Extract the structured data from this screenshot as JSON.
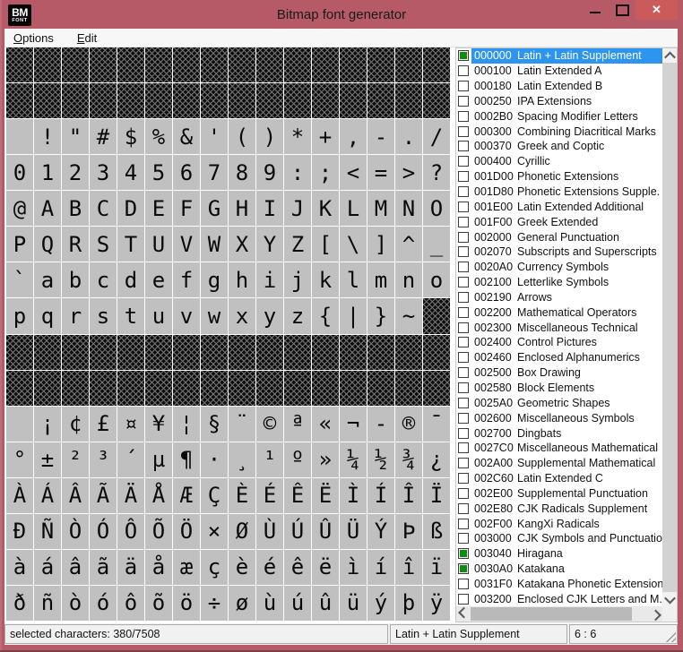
{
  "titlebar": {
    "title": "Bitmap font generator",
    "logo_top": "BM",
    "logo_bottom": "FONT",
    "close_glyph": "✕"
  },
  "menu": {
    "options_label": "Options",
    "edit_label": "Edit"
  },
  "char_grid": {
    "hatch_marker": "▒",
    "rows": [
      "▒▒▒▒▒▒▒▒▒▒▒▒▒▒▒▒",
      "▒▒▒▒▒▒▒▒▒▒▒▒▒▒▒▒",
      " !\"#$%&'()*+,-./",
      "0123456789:;<=>?",
      "@ABCDEFGHIJKLMNO",
      "PQRSTUVWXYZ[\\]^_",
      "`abcdefghijklmno",
      "pqrstuvwxyz{|}~▒",
      "▒▒▒▒▒▒▒▒▒▒▒▒▒▒▒▒",
      "▒▒▒▒▒▒▒▒▒▒▒▒▒▒▒▒",
      " ¡¢£¤¥¦§¨©ª«¬-®¯",
      "°±²³´µ¶·¸¹º»¼½¾¿",
      "ÀÁÂÃÄÅÆÇÈÉÊËÌÍÎÏ",
      "ÐÑÒÓÔÕÖ×ØÙÚÛÜÝÞß",
      "àáâãäåæçèéêëìíîï",
      "ðñòóôõö÷øùúûüýþÿ"
    ]
  },
  "block_list": {
    "items": [
      {
        "code": "000000",
        "name": "Latin + Latin Supplement",
        "checked": true,
        "selected": true
      },
      {
        "code": "000100",
        "name": "Latin Extended A",
        "checked": false,
        "selected": false
      },
      {
        "code": "000180",
        "name": "Latin Extended B",
        "checked": false,
        "selected": false
      },
      {
        "code": "000250",
        "name": "IPA Extensions",
        "checked": false,
        "selected": false
      },
      {
        "code": "0002B0",
        "name": "Spacing Modifier Letters",
        "checked": false,
        "selected": false
      },
      {
        "code": "000300",
        "name": "Combining Diacritical Marks",
        "checked": false,
        "selected": false
      },
      {
        "code": "000370",
        "name": "Greek and Coptic",
        "checked": false,
        "selected": false
      },
      {
        "code": "000400",
        "name": "Cyrillic",
        "checked": false,
        "selected": false
      },
      {
        "code": "001D00",
        "name": "Phonetic Extensions",
        "checked": false,
        "selected": false
      },
      {
        "code": "001D80",
        "name": "Phonetic Extensions Supple.",
        "checked": false,
        "selected": false
      },
      {
        "code": "001E00",
        "name": "Latin Extended Additional",
        "checked": false,
        "selected": false
      },
      {
        "code": "001F00",
        "name": "Greek Extended",
        "checked": false,
        "selected": false
      },
      {
        "code": "002000",
        "name": "General Punctuation",
        "checked": false,
        "selected": false
      },
      {
        "code": "002070",
        "name": "Subscripts and Superscripts",
        "checked": false,
        "selected": false
      },
      {
        "code": "0020A0",
        "name": "Currency Symbols",
        "checked": false,
        "selected": false
      },
      {
        "code": "002100",
        "name": "Letterlike Symbols",
        "checked": false,
        "selected": false
      },
      {
        "code": "002190",
        "name": "Arrows",
        "checked": false,
        "selected": false
      },
      {
        "code": "002200",
        "name": "Mathematical Operators",
        "checked": false,
        "selected": false
      },
      {
        "code": "002300",
        "name": "Miscellaneous Technical",
        "checked": false,
        "selected": false
      },
      {
        "code": "002400",
        "name": "Control Pictures",
        "checked": false,
        "selected": false
      },
      {
        "code": "002460",
        "name": "Enclosed Alphanumerics",
        "checked": false,
        "selected": false
      },
      {
        "code": "002500",
        "name": "Box Drawing",
        "checked": false,
        "selected": false
      },
      {
        "code": "002580",
        "name": "Block Elements",
        "checked": false,
        "selected": false
      },
      {
        "code": "0025A0",
        "name": "Geometric Shapes",
        "checked": false,
        "selected": false
      },
      {
        "code": "002600",
        "name": "Miscellaneous Symbols",
        "checked": false,
        "selected": false
      },
      {
        "code": "002700",
        "name": "Dingbats",
        "checked": false,
        "selected": false
      },
      {
        "code": "0027C0",
        "name": "Miscellaneous Mathematical",
        "checked": false,
        "selected": false
      },
      {
        "code": "002A00",
        "name": "Supplemental Mathematical",
        "checked": false,
        "selected": false
      },
      {
        "code": "002C60",
        "name": "Latin Extended C",
        "checked": false,
        "selected": false
      },
      {
        "code": "002E00",
        "name": "Supplemental Punctuation",
        "checked": false,
        "selected": false
      },
      {
        "code": "002E80",
        "name": "CJK Radicals Supplement",
        "checked": false,
        "selected": false
      },
      {
        "code": "002F00",
        "name": "KangXi Radicals",
        "checked": false,
        "selected": false
      },
      {
        "code": "003000",
        "name": "CJK Symbols and Punctuatio",
        "checked": false,
        "selected": false
      },
      {
        "code": "003040",
        "name": "Hiragana",
        "checked": true,
        "selected": false
      },
      {
        "code": "0030A0",
        "name": "Katakana",
        "checked": true,
        "selected": false
      },
      {
        "code": "0031F0",
        "name": "Katakana Phonetic Extension",
        "checked": false,
        "selected": false
      },
      {
        "code": "003200",
        "name": "Enclosed CJK Letters and M.",
        "checked": false,
        "selected": false
      }
    ]
  },
  "status_bar": {
    "left": "selected characters: 380/7508",
    "center": "Latin + Latin Supplement",
    "right": "6 : 6"
  },
  "colors": {
    "titlebar": "#b75a67",
    "close_button": "#cb5a5a",
    "selection": "#2e95ef",
    "checked_green": "#0b8e0b",
    "cell_bg": "#c0c0c0"
  }
}
